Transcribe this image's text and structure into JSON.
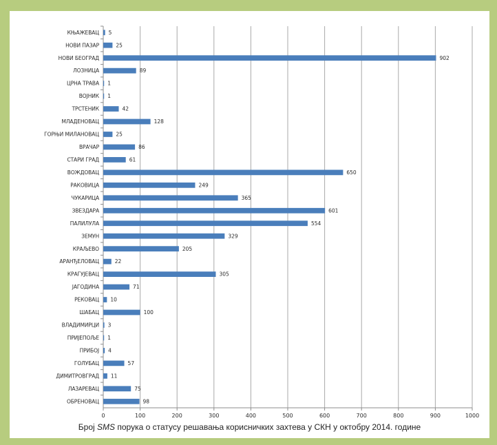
{
  "caption": {
    "before": "Број ",
    "emph": "SMS",
    "after": " порука о статусу решавања корисничких захтева у СКН у октобру 2014. године"
  },
  "chart_data": {
    "type": "bar",
    "orientation": "horizontal",
    "categories": [
      "КЊАЖЕВАЦ",
      "НОВИ ПАЗАР",
      "НОВИ БЕОГРАД",
      "ЛОЗНИЦА",
      "ЦРНА ТРАВА",
      "ВОЈНИК",
      "ТРСТЕНИК",
      "МЛАДЕНОВАЦ",
      "ГОРЊИ МИЛАНОВАЦ",
      "ВРАЧАР",
      "СТАРИ ГРАД",
      "ВОЖДОВАЦ",
      "РАКОВИЦА",
      "ЧУКАРИЦА",
      "ЗВЕЗДАРА",
      "ПАЛИЛУЛА",
      "ЗЕМУН",
      "КРАЉЕВО",
      "АРАНЂЕЛОВАЦ",
      "КРАГУЈЕВАЦ",
      "ЈАГОДИНА",
      "РЕКОВАЦ",
      "ШАБАЦ",
      "ВЛАДИМИРЦИ",
      "ПРИЈЕПОЉЕ",
      "ПРИБОЈ",
      "ГОЛУБАЦ",
      "ДИМИТРОВГРАД",
      "ЛАЗАРЕВАЦ",
      "ОБРЕНОВАЦ"
    ],
    "values": [
      5,
      25,
      902,
      89,
      1,
      1,
      42,
      128,
      25,
      86,
      61,
      650,
      249,
      365,
      601,
      554,
      329,
      205,
      22,
      305,
      71,
      10,
      100,
      3,
      1,
      4,
      57,
      11,
      75,
      98
    ],
    "xlim": [
      0,
      1000
    ],
    "xticks": [
      0,
      100,
      200,
      300,
      400,
      500,
      600,
      700,
      800,
      900,
      1000
    ],
    "grid": true,
    "bar_color": "#4a7ebb"
  }
}
